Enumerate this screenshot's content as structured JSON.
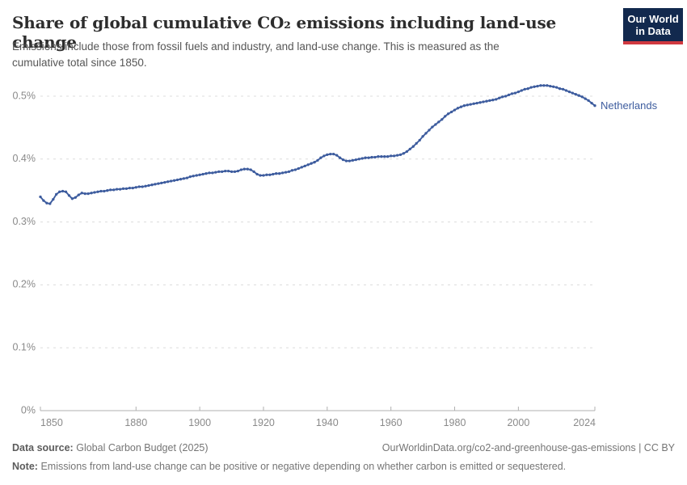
{
  "header": {
    "title": "Share of global cumulative CO₂ emissions including land-use change",
    "subtitle": "Emissions include those from fossil fuels and industry, and land-use change. This is measured as the cumulative total since 1850.",
    "logo": {
      "line1": "Our World",
      "line2": "in Data"
    }
  },
  "chart_data": {
    "type": "line",
    "title": "Share of global cumulative CO₂ emissions including land-use change",
    "entity": "Netherlands",
    "unit": "%",
    "grid": "dashed-horizontal",
    "marker": "circle",
    "legend_position": "end-of-line-label",
    "x_range": [
      1850,
      2024
    ],
    "ylim": [
      0,
      0.53
    ],
    "x_ticks": [
      {
        "value": 1850,
        "label": "1850"
      },
      {
        "value": 1880,
        "label": "1880"
      },
      {
        "value": 1900,
        "label": "1900"
      },
      {
        "value": 1920,
        "label": "1920"
      },
      {
        "value": 1940,
        "label": "1940"
      },
      {
        "value": 1960,
        "label": "1960"
      },
      {
        "value": 1980,
        "label": "1980"
      },
      {
        "value": 2000,
        "label": "2000"
      },
      {
        "value": 2024,
        "label": "2024"
      }
    ],
    "y_ticks": [
      {
        "value": 0.0,
        "label": "0%"
      },
      {
        "value": 0.1,
        "label": "0.1%"
      },
      {
        "value": 0.2,
        "label": "0.2%"
      },
      {
        "value": 0.3,
        "label": "0.3%"
      },
      {
        "value": 0.4,
        "label": "0.4%"
      },
      {
        "value": 0.5,
        "label": "0.5%"
      }
    ],
    "series": [
      {
        "name": "Netherlands",
        "color": "#3d5c9e",
        "start_year": 1850,
        "end_year": 2024,
        "values_percent": [
          0.34,
          0.334,
          0.33,
          0.329,
          0.336,
          0.344,
          0.348,
          0.349,
          0.348,
          0.342,
          0.337,
          0.339,
          0.343,
          0.346,
          0.345,
          0.345,
          0.346,
          0.347,
          0.348,
          0.349,
          0.349,
          0.35,
          0.351,
          0.351,
          0.352,
          0.352,
          0.353,
          0.353,
          0.354,
          0.354,
          0.355,
          0.356,
          0.356,
          0.357,
          0.358,
          0.359,
          0.36,
          0.361,
          0.362,
          0.363,
          0.364,
          0.365,
          0.366,
          0.367,
          0.368,
          0.369,
          0.37,
          0.372,
          0.373,
          0.374,
          0.375,
          0.376,
          0.377,
          0.378,
          0.378,
          0.379,
          0.38,
          0.38,
          0.381,
          0.381,
          0.38,
          0.38,
          0.381,
          0.383,
          0.384,
          0.384,
          0.383,
          0.38,
          0.376,
          0.374,
          0.374,
          0.375,
          0.375,
          0.376,
          0.377,
          0.377,
          0.378,
          0.379,
          0.38,
          0.382,
          0.383,
          0.385,
          0.387,
          0.389,
          0.391,
          0.393,
          0.395,
          0.398,
          0.402,
          0.405,
          0.407,
          0.408,
          0.408,
          0.406,
          0.402,
          0.399,
          0.397,
          0.397,
          0.398,
          0.399,
          0.4,
          0.401,
          0.402,
          0.402,
          0.403,
          0.403,
          0.404,
          0.404,
          0.404,
          0.404,
          0.405,
          0.405,
          0.406,
          0.407,
          0.409,
          0.412,
          0.416,
          0.42,
          0.425,
          0.43,
          0.436,
          0.441,
          0.446,
          0.451,
          0.455,
          0.459,
          0.463,
          0.468,
          0.472,
          0.475,
          0.478,
          0.481,
          0.483,
          0.485,
          0.486,
          0.487,
          0.488,
          0.489,
          0.49,
          0.491,
          0.492,
          0.493,
          0.494,
          0.495,
          0.497,
          0.499,
          0.5,
          0.502,
          0.504,
          0.505,
          0.507,
          0.509,
          0.511,
          0.512,
          0.514,
          0.515,
          0.516,
          0.517,
          0.517,
          0.517,
          0.516,
          0.515,
          0.514,
          0.512,
          0.511,
          0.509,
          0.507,
          0.505,
          0.503,
          0.501,
          0.499,
          0.496,
          0.493,
          0.489,
          0.485
        ]
      }
    ]
  },
  "footer": {
    "source_label": "Data source:",
    "source_value": "Global Carbon Budget (2025)",
    "url": "OurWorldinData.org/co2-and-greenhouse-gas-emissions | CC BY",
    "note_label": "Note:",
    "note_value": "Emissions from land-use change can be positive or negative depending on whether carbon is emitted or sequestered."
  },
  "colors": {
    "line": "#3d5c9e",
    "logo_navy": "#12294e",
    "logo_red": "#d0393f",
    "grid": "#dcdcdc",
    "axis": "#b0b0b0",
    "tick_label": "#8a8a8a",
    "title_text": "#2d2d2d",
    "subtitle_text": "#565656",
    "footer_text": "#757575"
  }
}
